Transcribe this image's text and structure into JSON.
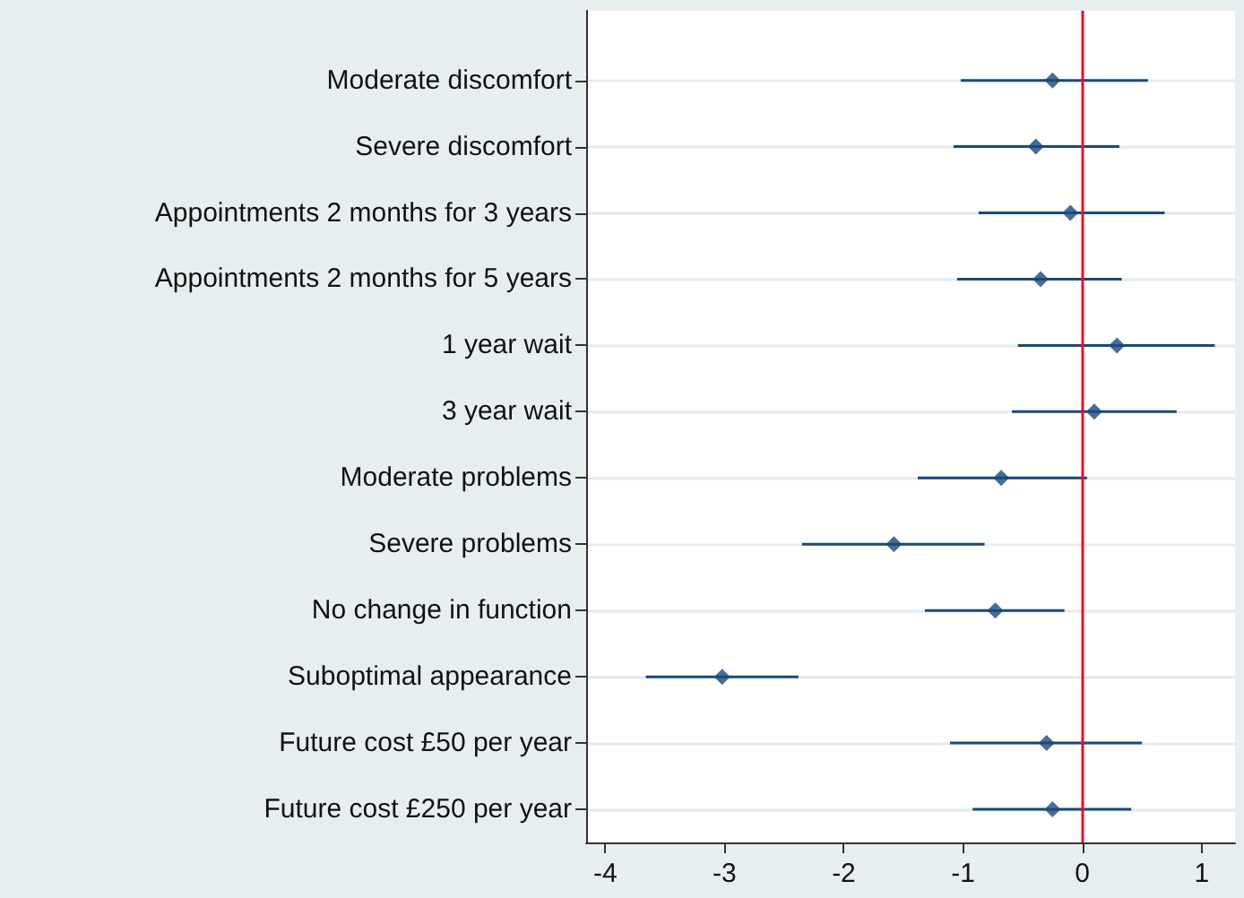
{
  "chart_data": {
    "type": "scatter",
    "categories": [
      "Moderate discomfort",
      "Severe discomfort",
      "Appointments 2 months for 3 years",
      "Appointments 2 months for 5 years",
      "1 year wait",
      "3 year wait",
      "Moderate problems",
      "Severe problems",
      "No change in function",
      "Suboptimal appearance",
      "Future cost £50 per year",
      "Future cost £250 per year"
    ],
    "orientation": "horizontal",
    "series": [
      {
        "color": "#1a4a7a",
        "values": [
          -0.25,
          -0.39,
          -0.1,
          -0.35,
          0.29,
          0.1,
          -0.68,
          -1.58,
          -0.73,
          -3.02,
          -0.3,
          -0.25
        ],
        "errors": [
          [
            -1.02,
            0.55
          ],
          [
            -1.08,
            0.31
          ],
          [
            -0.87,
            0.69
          ],
          [
            -1.05,
            0.33
          ],
          [
            -0.54,
            1.11
          ],
          [
            -0.59,
            0.79
          ],
          [
            -1.38,
            0.04
          ],
          [
            -2.35,
            -0.82
          ],
          [
            -1.32,
            -0.15
          ],
          [
            -3.66,
            -2.38
          ],
          [
            -1.11,
            0.5
          ],
          [
            -0.92,
            0.41
          ]
        ]
      }
    ],
    "xlim": [
      -4.16,
      1.28
    ],
    "xticks": [
      -4,
      -3,
      -2,
      -1,
      0,
      1
    ],
    "ref_lines": [
      {
        "axis": "x",
        "value": 0,
        "color": "#e8102a"
      }
    ],
    "grid": "y",
    "marker": "diamond"
  }
}
